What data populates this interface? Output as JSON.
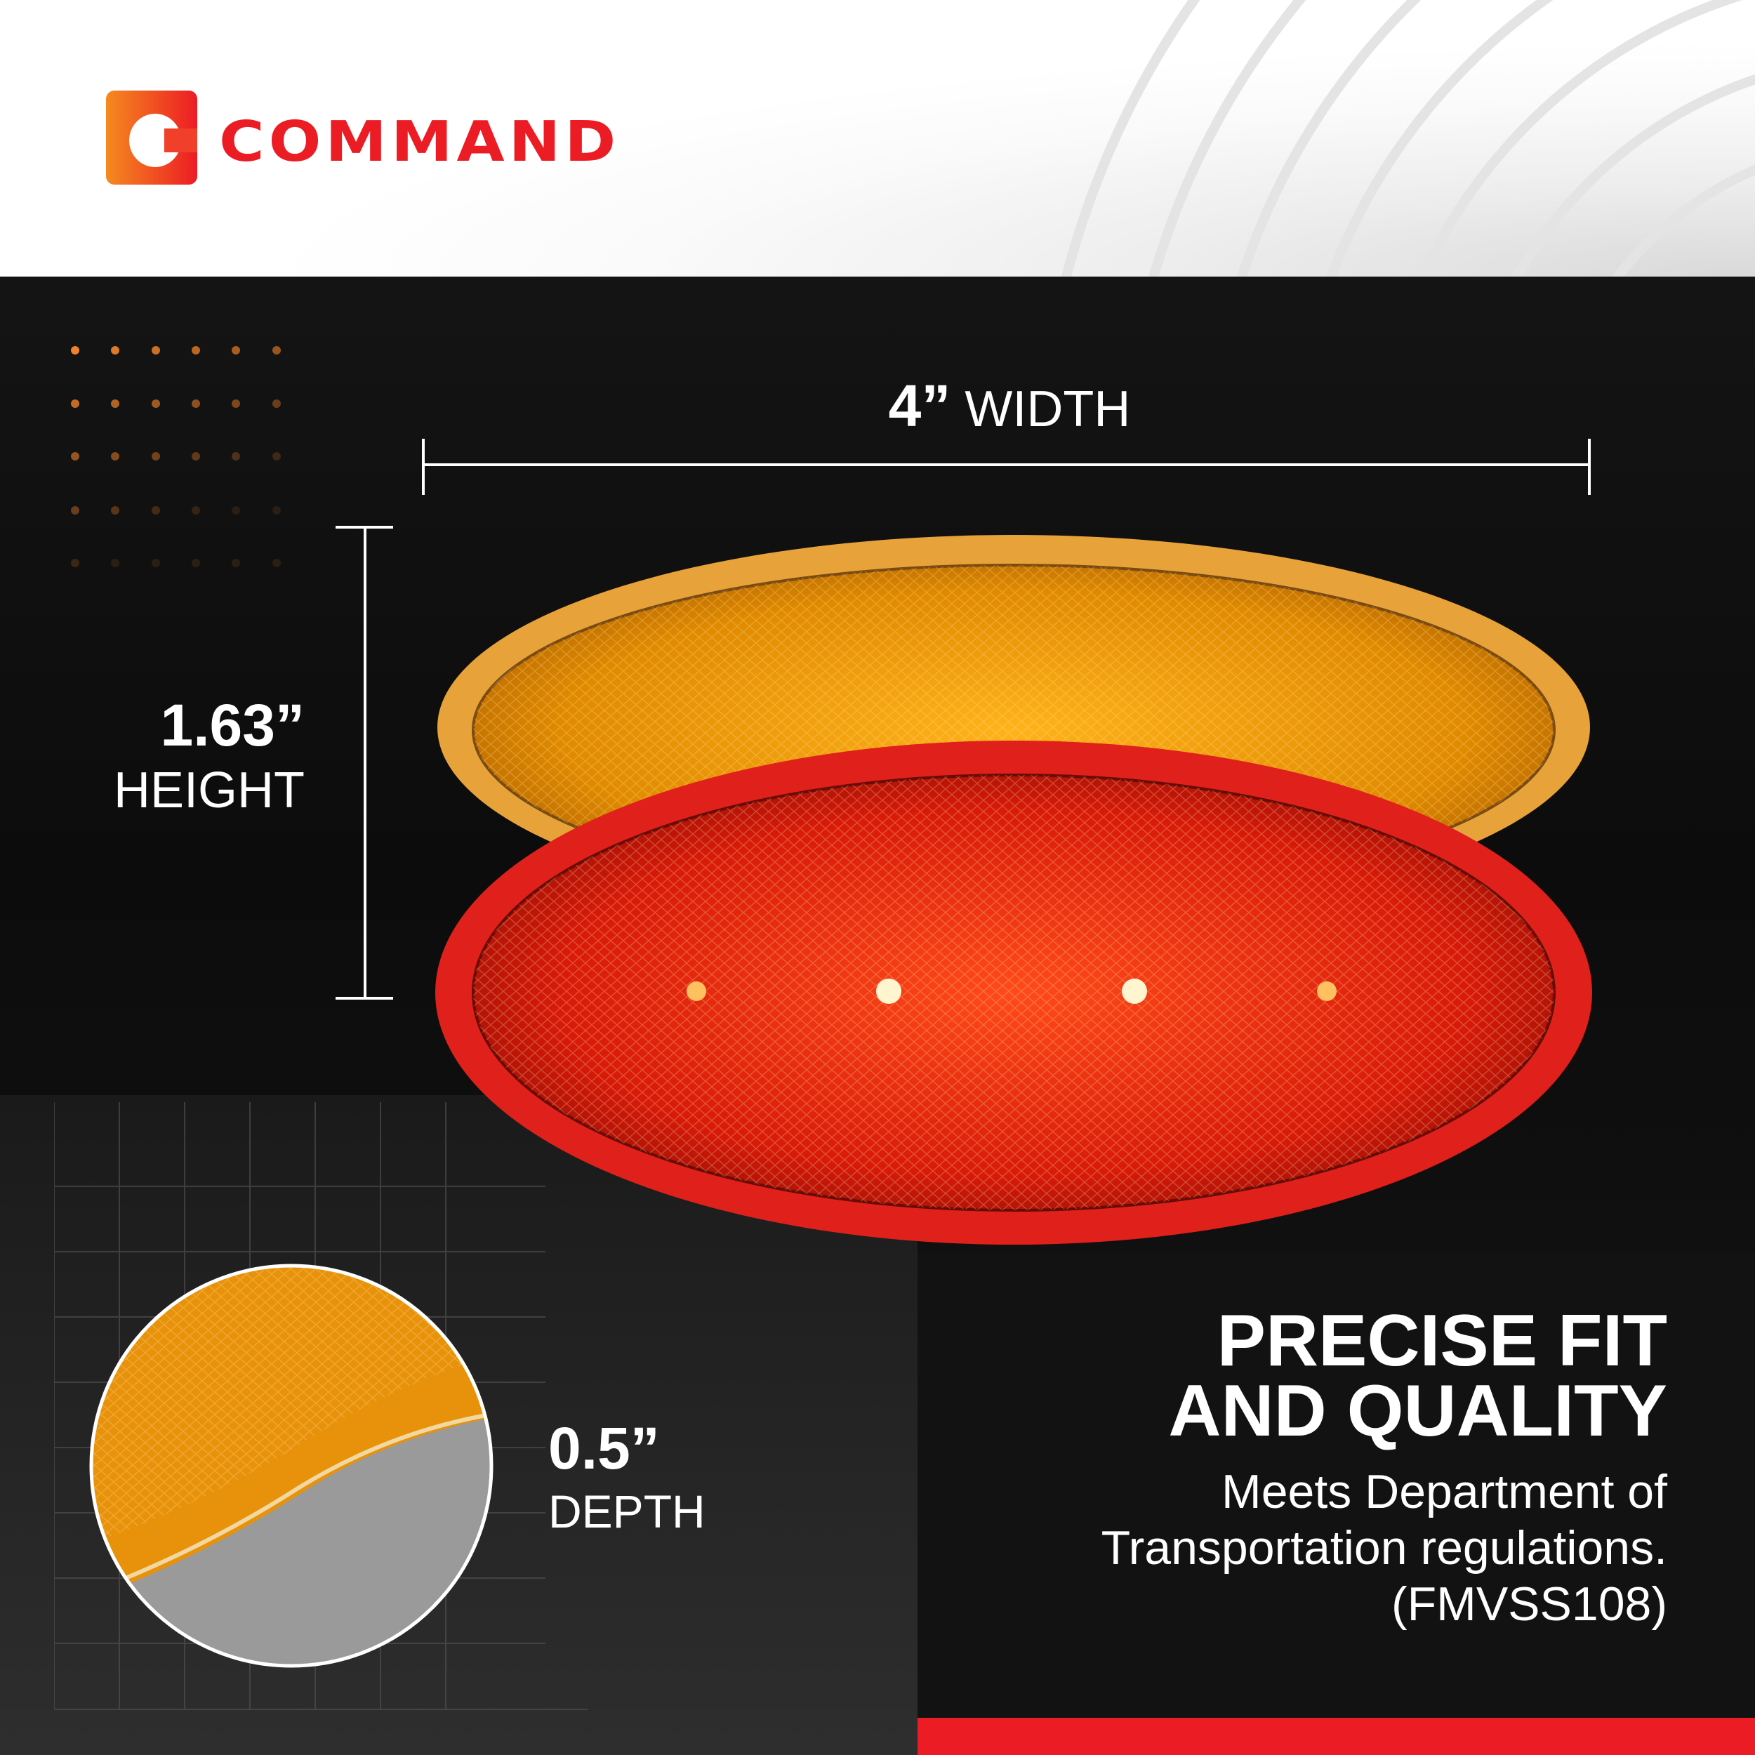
{
  "brand": {
    "name": "COMMAND",
    "logo_letter": "C",
    "colors": {
      "red": "#ec1c24",
      "orange": "#f58a1f"
    }
  },
  "dimensions": {
    "width": {
      "value": "4”",
      "label": "WIDTH"
    },
    "height": {
      "value": "1.63”",
      "label": "HEIGHT"
    },
    "depth": {
      "value": "0.5”",
      "label": "DEPTH"
    }
  },
  "feature": {
    "title_lines": [
      "PRECISE FIT",
      "AND QUALITY"
    ],
    "description_lines": [
      "Meets Department of",
      "Transportation regulations.",
      "(FMVSS108)"
    ]
  },
  "product": {
    "lamp_colors": [
      "amber",
      "red"
    ]
  }
}
